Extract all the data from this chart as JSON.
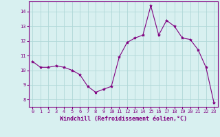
{
  "x": [
    0,
    1,
    2,
    3,
    4,
    5,
    6,
    7,
    8,
    9,
    10,
    11,
    12,
    13,
    14,
    15,
    16,
    17,
    18,
    19,
    20,
    21,
    22,
    23
  ],
  "y": [
    10.6,
    10.2,
    10.2,
    10.3,
    10.2,
    10.0,
    9.7,
    8.9,
    8.5,
    8.7,
    8.9,
    10.9,
    11.9,
    12.2,
    12.4,
    14.4,
    12.4,
    13.4,
    13.0,
    12.2,
    12.1,
    11.4,
    10.2,
    7.8
  ],
  "line_color": "#800080",
  "marker": "*",
  "marker_size": 3,
  "bg_color": "#d8f0f0",
  "grid_color": "#b0d8d8",
  "xlabel": "Windchill (Refroidissement éolien,°C)",
  "xlabel_color": "#800080",
  "tick_color": "#800080",
  "spine_color": "#800080",
  "ylim": [
    7.5,
    14.7
  ],
  "yticks": [
    8,
    9,
    10,
    11,
    12,
    13,
    14
  ],
  "xticks": [
    0,
    1,
    2,
    3,
    4,
    5,
    6,
    7,
    8,
    9,
    10,
    11,
    12,
    13,
    14,
    15,
    16,
    17,
    18,
    19,
    20,
    21,
    22,
    23
  ],
  "tick_fontsize": 5.0,
  "xlabel_fontsize": 6.0
}
